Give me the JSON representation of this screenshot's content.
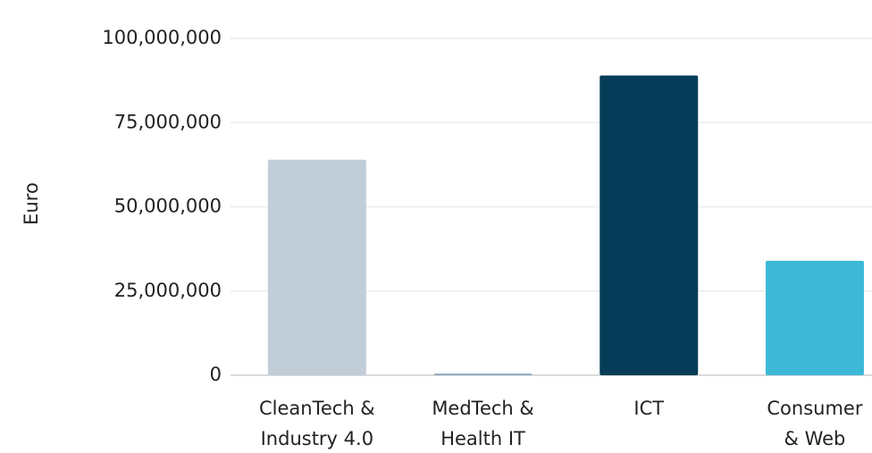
{
  "chart_data": {
    "type": "bar",
    "y_label": "Euro",
    "categories": [
      [
        "CleanTech &",
        "Industry 4.0"
      ],
      [
        "MedTech &",
        "Health IT"
      ],
      [
        "ICT"
      ],
      [
        "Consumer",
        "& Web"
      ]
    ],
    "values": [
      64000000,
      500000,
      89000000,
      34000000
    ],
    "colors": [
      "#c1cdd7",
      "#8ea9c1",
      "#053d58",
      "#3db8d7"
    ],
    "ylim": [
      0,
      100000000
    ],
    "yticks": [
      0,
      {
        "value": 25000000,
        "label": "25,000,000"
      },
      {
        "value": 50000000,
        "label": "50,000,000"
      },
      {
        "value": 75000000,
        "label": "75,000,000"
      },
      {
        "value": 100000000,
        "label": "100,000,000"
      }
    ],
    "grid": true
  }
}
